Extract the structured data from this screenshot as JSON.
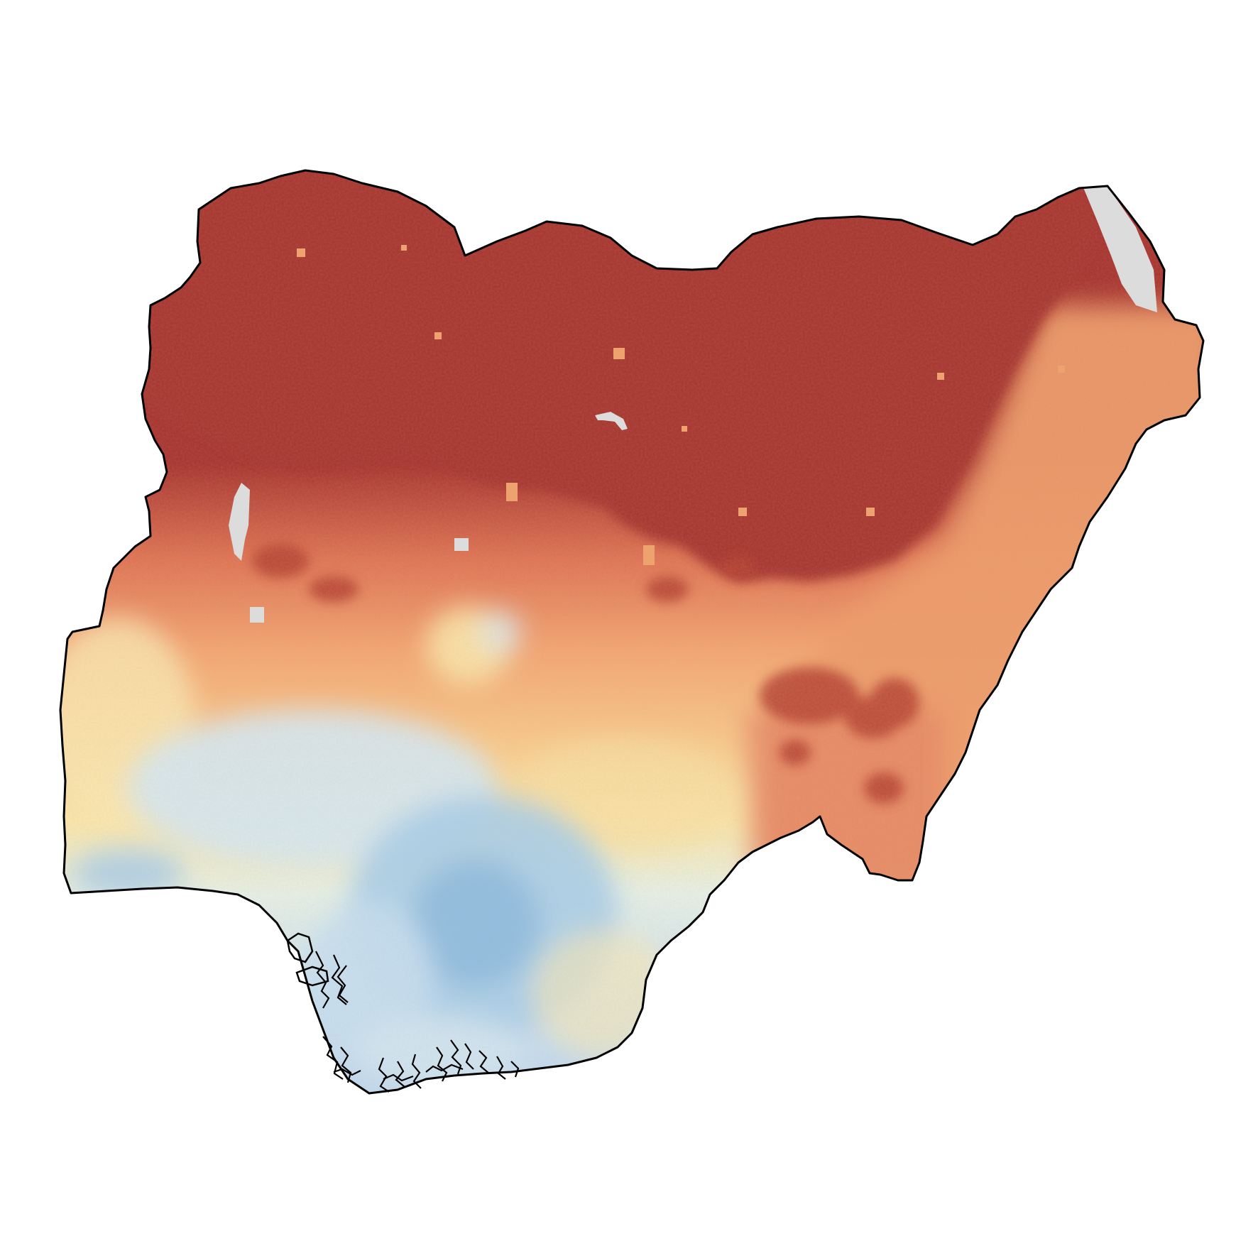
{
  "map": {
    "country": "Nigeria",
    "no_data_color": "#dcdcdc",
    "outline_color": "#000000",
    "palette": [
      "#a8302a",
      "#c8503a",
      "#e8805a",
      "#f5a070",
      "#fbc888",
      "#fde9a8",
      "#e6f1ec",
      "#c6dff0",
      "#a6cbe6",
      "#8ab8dc"
    ],
    "legend_shown": false,
    "title_shown": false
  }
}
